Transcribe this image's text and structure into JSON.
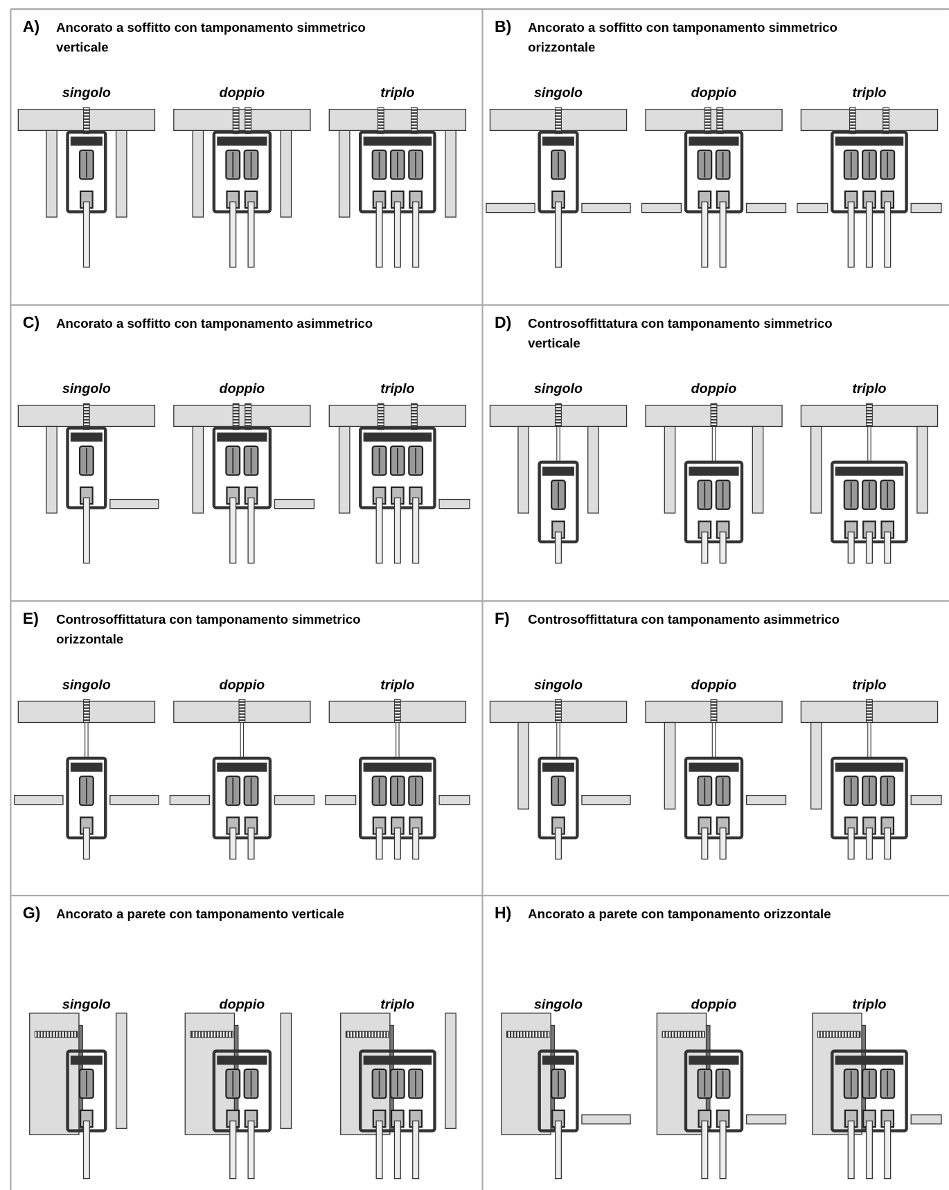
{
  "panels": [
    {
      "letter": "A)",
      "title": [
        "Ancorato a soffitto con tamponamento simmetrico",
        "verticale"
      ],
      "variants": [
        "singolo",
        "doppio",
        "triplo"
      ]
    },
    {
      "letter": "B)",
      "title": [
        "Ancorato a soffitto con tamponamento simmetrico",
        "orizzontale"
      ],
      "variants": [
        "singolo",
        "doppio",
        "triplo"
      ]
    },
    {
      "letter": "C)",
      "title": [
        "Ancorato a soffitto con tamponamento asimmetrico"
      ],
      "variants": [
        "singolo",
        "doppio",
        "triplo"
      ]
    },
    {
      "letter": "D)",
      "title": [
        "Controsoffittatura con tamponamento simmetrico",
        "verticale"
      ],
      "variants": [
        "singolo",
        "doppio",
        "triplo"
      ]
    },
    {
      "letter": "E)",
      "title": [
        "Controsoffittatura con tamponamento simmetrico",
        "orizzontale"
      ],
      "variants": [
        "singolo",
        "doppio",
        "triplo"
      ]
    },
    {
      "letter": "F)",
      "title": [
        "Controsoffittatura con tamponamento asimmetrico"
      ],
      "variants": [
        "singolo",
        "doppio",
        "triplo"
      ]
    },
    {
      "letter": "G)",
      "title": [
        "Ancorato a parete con tamponamento verticale"
      ],
      "variants": [
        "singolo",
        "doppio",
        "triplo"
      ]
    },
    {
      "letter": "H)",
      "title": [
        "Ancorato a parete con tamponamento orizzontale"
      ],
      "variants": [
        "singolo",
        "doppio",
        "triplo"
      ]
    }
  ]
}
